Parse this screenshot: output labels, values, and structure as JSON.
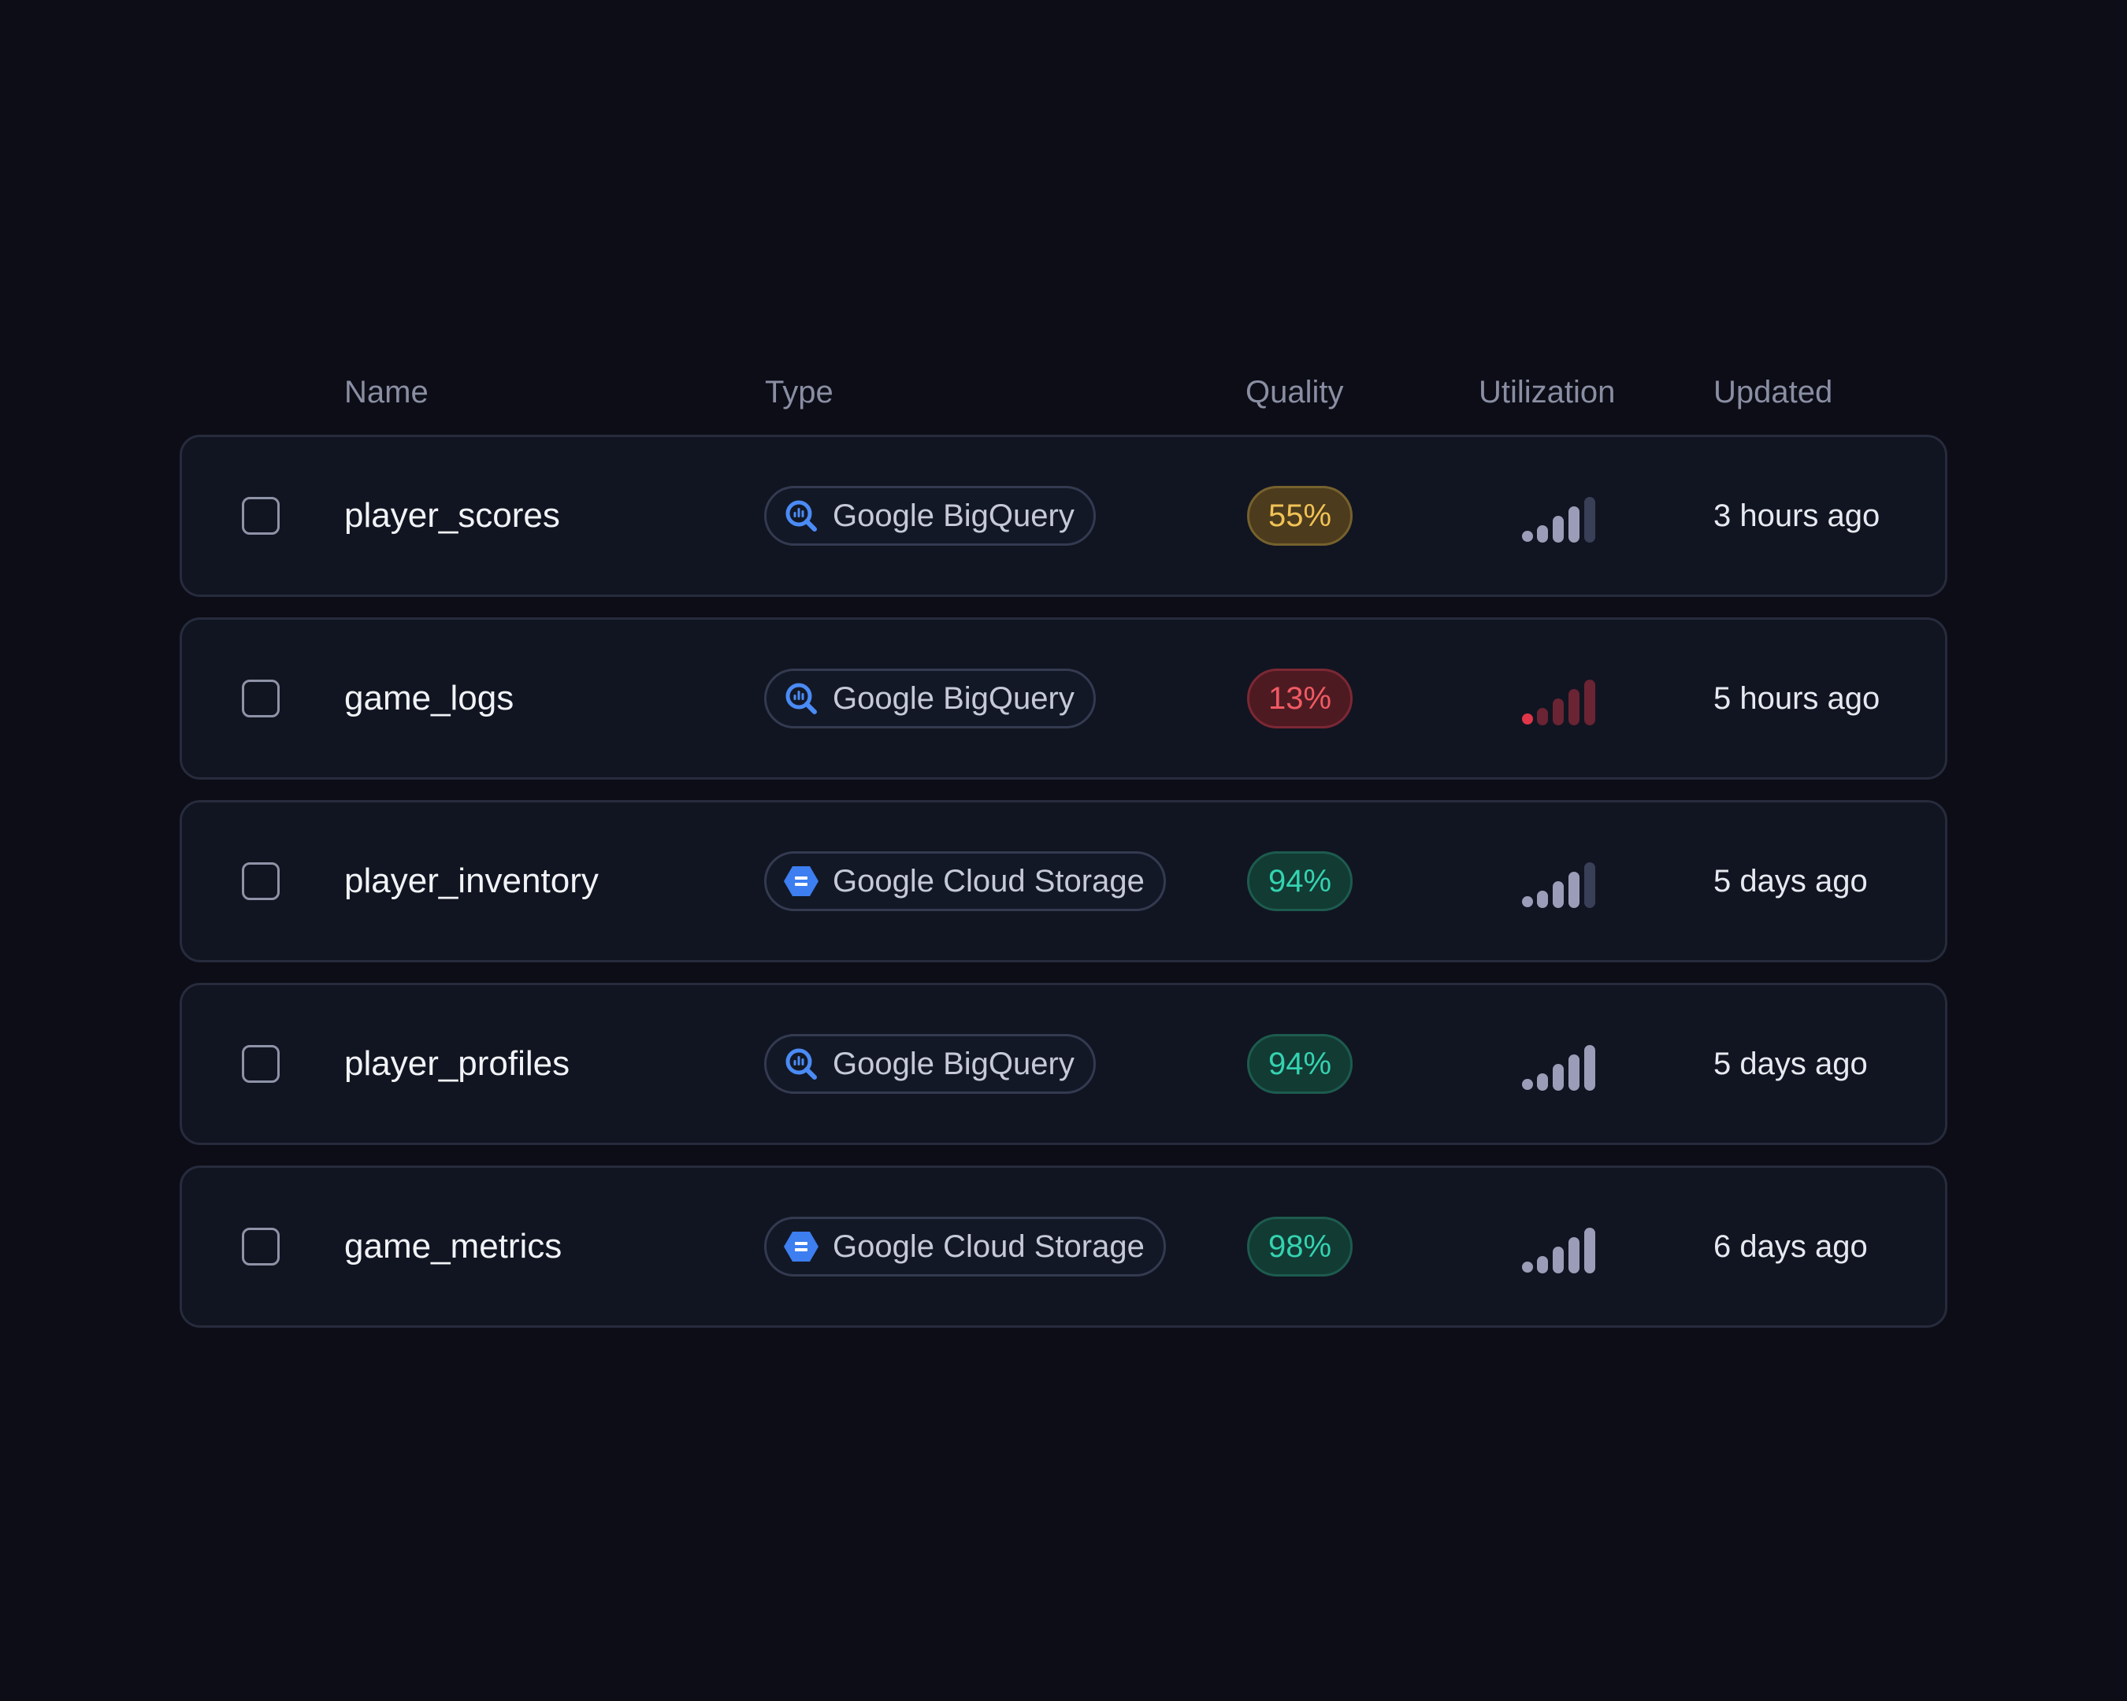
{
  "columns": {
    "name": "Name",
    "type": "Type",
    "quality": "Quality",
    "utilization": "Utilization",
    "updated": "Updated"
  },
  "colors": {
    "background": "#0c0d16",
    "row_background": "#111521",
    "row_border": "#272b3d",
    "bigquery_icon": "#4a8bf5",
    "cloud_storage_icon": "#3d7ef0",
    "quality_warn": "#f1c256",
    "quality_bad": "#f05a63",
    "quality_good": "#34d3b0",
    "util_active": "#9b9db8",
    "util_inactive": "#3a3f58",
    "util_critical": "#e0364a",
    "util_critical_dim": "#6a2433"
  },
  "rows": [
    {
      "name": "player_scores",
      "type": "Google BigQuery",
      "type_icon": "bigquery-icon",
      "quality": "55%",
      "quality_status": "warn",
      "utilization_level": 3,
      "utilization_status": "normal",
      "updated": "3 hours ago"
    },
    {
      "name": "game_logs",
      "type": "Google BigQuery",
      "type_icon": "bigquery-icon",
      "quality": "13%",
      "quality_status": "bad",
      "utilization_level": 1,
      "utilization_status": "critical",
      "updated": "5 hours ago"
    },
    {
      "name": "player_inventory",
      "type": "Google Cloud Storage",
      "type_icon": "cloud-storage-icon",
      "quality": "94%",
      "quality_status": "good",
      "utilization_level": 3,
      "utilization_status": "normal",
      "updated": "5 days ago"
    },
    {
      "name": "player_profiles",
      "type": "Google BigQuery",
      "type_icon": "bigquery-icon",
      "quality": "94%",
      "quality_status": "good",
      "utilization_level": 4,
      "utilization_status": "normal",
      "updated": "5 days ago"
    },
    {
      "name": "game_metrics",
      "type": "Google Cloud Storage",
      "type_icon": "cloud-storage-icon",
      "quality": "98%",
      "quality_status": "good",
      "utilization_level": 4,
      "utilization_status": "normal",
      "updated": "6 days ago"
    }
  ]
}
